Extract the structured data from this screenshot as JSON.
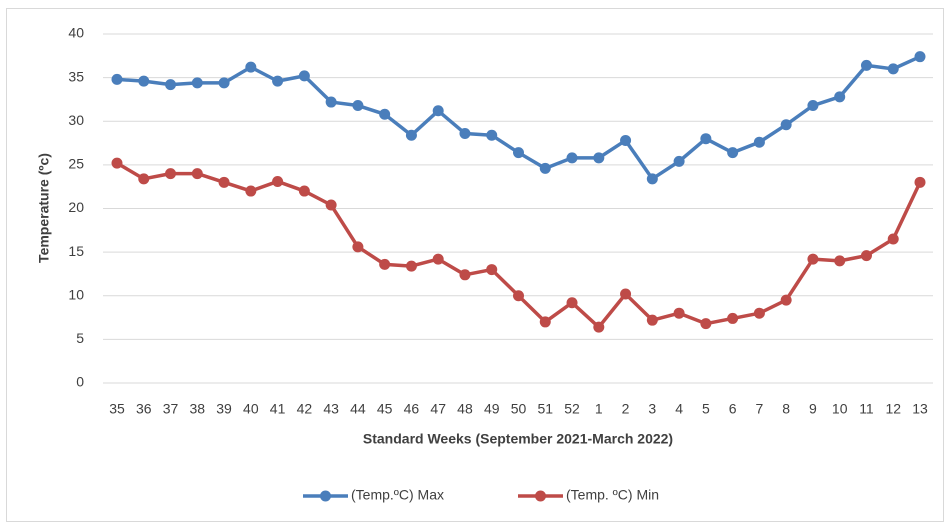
{
  "chart_data": {
    "type": "line",
    "x_label": "Standard Weeks (September 2021-March 2022)",
    "y_label": "Temperature (ºc)",
    "categories": [
      "35",
      "36",
      "37",
      "38",
      "39",
      "40",
      "41",
      "42",
      "43",
      "44",
      "45",
      "46",
      "47",
      "48",
      "49",
      "50",
      "51",
      "52",
      "1",
      "2",
      "3",
      "4",
      "5",
      "6",
      "7",
      "8",
      "9",
      "10",
      "11",
      "12",
      "13"
    ],
    "series": [
      {
        "name": "(Temp.ºC) Max",
        "color": "#4a7ebb",
        "values": [
          34.8,
          34.6,
          34.2,
          34.4,
          34.4,
          36.2,
          34.6,
          35.2,
          32.2,
          31.8,
          30.8,
          28.4,
          31.2,
          28.6,
          28.4,
          26.4,
          24.6,
          25.8,
          25.8,
          27.8,
          23.4,
          25.4,
          28.0,
          26.4,
          27.6,
          29.6,
          31.8,
          32.8,
          36.4,
          36.0,
          37.4
        ]
      },
      {
        "name": "(Temp. ºC) Min",
        "color": "#be4b48",
        "values": [
          25.2,
          23.4,
          24.0,
          24.0,
          23.0,
          22.0,
          23.1,
          22.0,
          20.4,
          15.6,
          13.6,
          13.4,
          14.2,
          12.4,
          13.0,
          10.0,
          7.0,
          9.2,
          6.4,
          10.2,
          7.2,
          8.0,
          6.8,
          7.4,
          8.0,
          9.5,
          14.2,
          14.0,
          14.6,
          16.5,
          23.0
        ]
      }
    ],
    "ylim": [
      0,
      40
    ],
    "yticks": [
      0,
      5,
      10,
      15,
      20,
      25,
      30,
      35,
      40
    ],
    "grid": true,
    "legend": "bottom"
  }
}
